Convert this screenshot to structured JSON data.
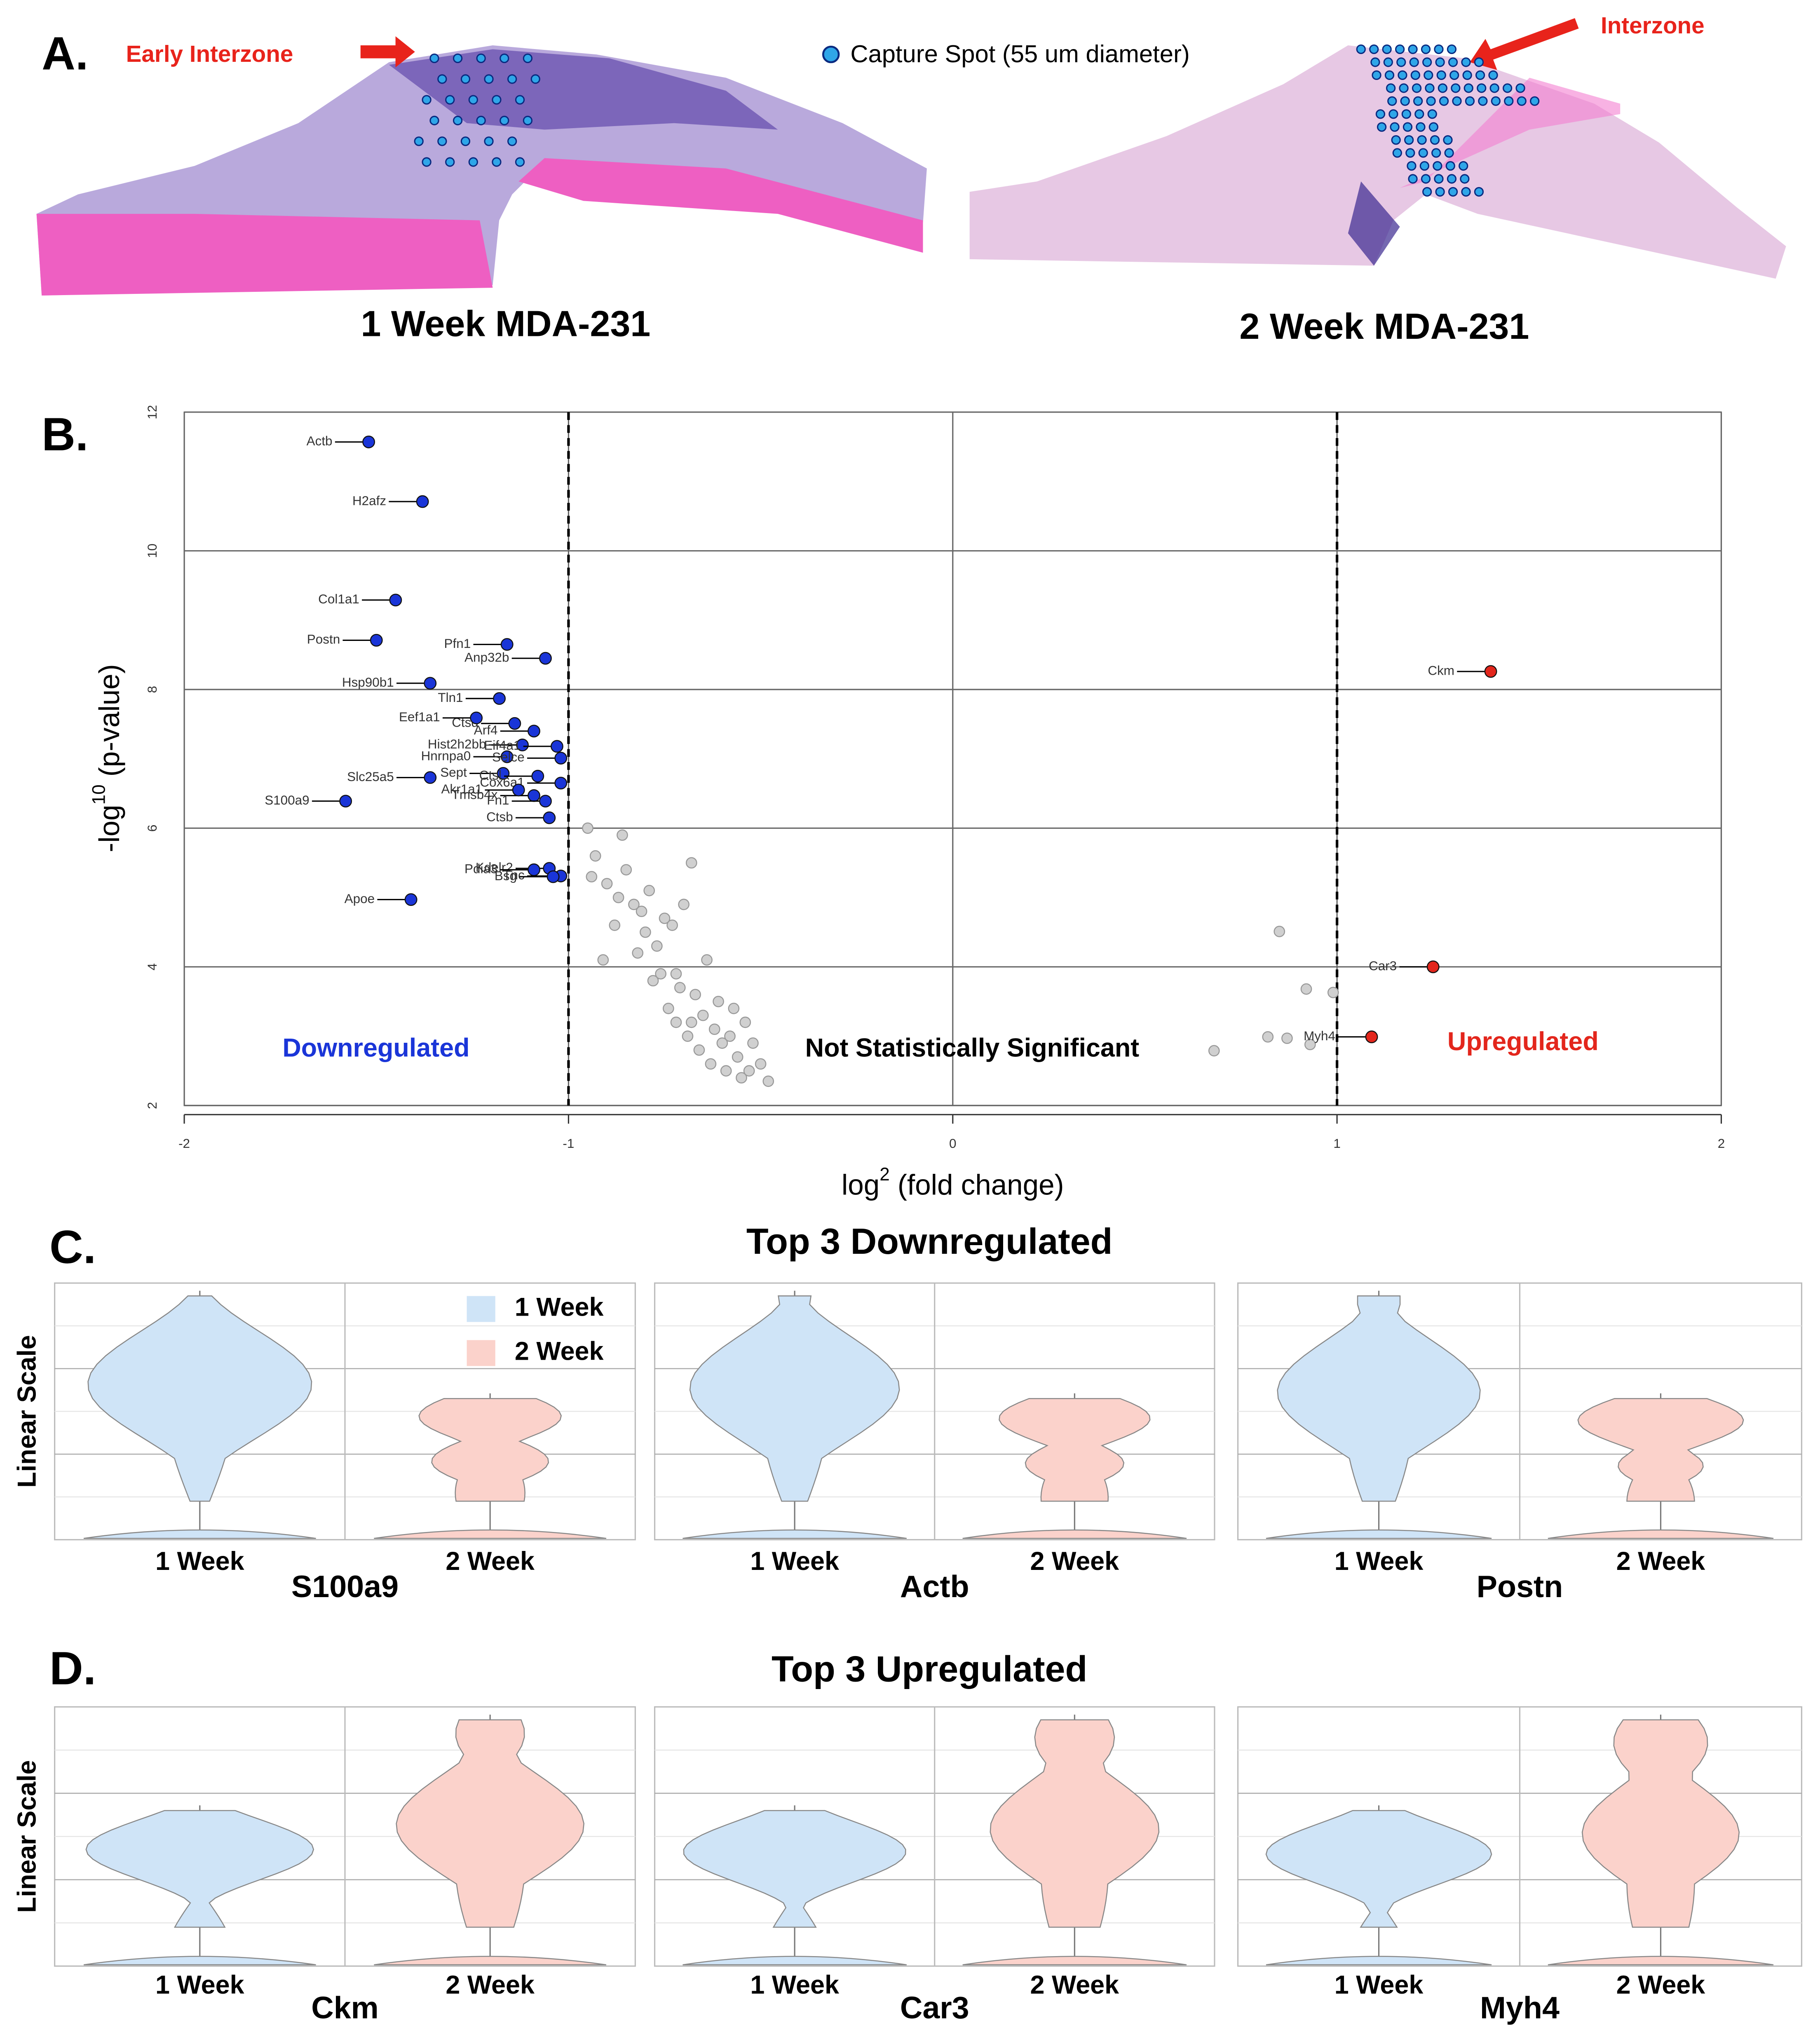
{
  "panel_a": {
    "label": "A.",
    "left_annotation": "Early Interzone",
    "legend": "Capture Spot (55 um diameter)",
    "right_annotation": "Interzone",
    "captions": [
      "1 Week MDA-231",
      "2 Week MDA-231"
    ]
  },
  "panel_b_label": "B.",
  "chart_data": {
    "type": "scatter",
    "xlabel": [
      "log",
      "2",
      " (fold change)"
    ],
    "ylabel": [
      "-log",
      "10",
      " (p-value)"
    ],
    "xlim": [
      -2,
      2
    ],
    "ylim": [
      2,
      12
    ],
    "xticks": [
      -2,
      -1,
      0,
      1,
      2
    ],
    "yticks": [
      2,
      4,
      6,
      8,
      10,
      12
    ],
    "thresholds": [
      -1,
      1
    ],
    "grid": true,
    "series": [
      {
        "name": "Downregulated",
        "color": "#1a35d8",
        "labels": [
          "Actb",
          "H2afz",
          "Col1a1",
          "Postn",
          "Anp32b",
          "Ctsd",
          "Pfn1",
          "Hist2h2bb",
          "Hsp90b1",
          "Tln1",
          "Eef1a1",
          "Arf4",
          "Eif4a1",
          "Hnrnpa0",
          "Selce",
          "Slc25a5",
          "Sept",
          "Cox6a1",
          "S100a9",
          "Ctsl",
          "Tmsb4x",
          "Fn1",
          "Ctsb",
          "Akr1a1",
          "Kdelr2",
          "Pdia3",
          "Tnc",
          "Bsg",
          "Apoe"
        ],
        "x": [
          -1.52,
          -1.38,
          -1.45,
          -1.5,
          -1.06,
          -1.14,
          -1.16,
          -1.12,
          -1.36,
          -1.18,
          -1.24,
          -1.09,
          -1.03,
          -1.16,
          -1.02,
          -1.36,
          -1.17,
          -1.02,
          -1.58,
          -1.08,
          -1.09,
          -1.06,
          -1.05,
          -1.13,
          -1.05,
          -1.09,
          -1.02,
          -1.04,
          -1.41
        ],
        "values": [
          11.57,
          10.71,
          9.29,
          8.71,
          8.45,
          7.51,
          8.65,
          7.2,
          8.09,
          7.87,
          7.59,
          7.4,
          7.18,
          7.03,
          7.01,
          6.73,
          6.79,
          6.65,
          6.39,
          6.75,
          6.47,
          6.39,
          6.15,
          6.55,
          5.42,
          5.4,
          5.31,
          5.3,
          4.97
        ]
      },
      {
        "name": "Not Statistically Significant",
        "color": "#d0d0d0",
        "x": [
          -0.95,
          -0.93,
          -0.9,
          -0.88,
          -0.86,
          -0.85,
          -0.83,
          -0.82,
          -0.8,
          -0.79,
          -0.78,
          -0.77,
          -0.76,
          -0.75,
          -0.74,
          -0.73,
          -0.72,
          -0.71,
          -0.7,
          -0.69,
          -0.68,
          -0.67,
          -0.66,
          -0.65,
          -0.64,
          -0.63,
          -0.62,
          -0.61,
          -0.6,
          -0.59,
          -0.58,
          -0.57,
          -0.56,
          -0.55,
          -0.54,
          -0.53,
          -0.52,
          -0.5,
          -0.48,
          -0.94,
          -0.91,
          -0.87,
          -0.81,
          -0.72,
          -0.68,
          0.68,
          0.82,
          0.85,
          0.87,
          0.92,
          0.93,
          0.99
        ],
        "values": [
          6.0,
          5.6,
          5.2,
          4.6,
          5.9,
          5.4,
          4.9,
          4.2,
          4.5,
          5.1,
          3.8,
          4.3,
          3.9,
          4.7,
          3.4,
          4.6,
          3.2,
          3.7,
          4.9,
          3.0,
          5.5,
          3.6,
          2.8,
          3.3,
          4.1,
          2.6,
          3.1,
          3.5,
          2.9,
          2.5,
          3.0,
          3.4,
          2.7,
          2.4,
          3.2,
          2.5,
          2.9,
          2.6,
          2.35,
          5.3,
          4.1,
          5.0,
          4.8,
          3.9,
          3.2,
          2.79,
          2.99,
          4.51,
          2.97,
          3.68,
          2.88,
          3.63
        ]
      },
      {
        "name": "Upregulated",
        "color": "#e3261c",
        "labels": [
          "Ckm",
          "Car3",
          "Myh4"
        ],
        "x": [
          1.4,
          1.25,
          1.09
        ],
        "values": [
          8.26,
          4.0,
          2.99
        ]
      }
    ]
  },
  "violins": {
    "ylabel": "Linear Scale",
    "groups": [
      "1 Week",
      "2 Week"
    ],
    "colors": [
      "#cfe4f7",
      "#fbd2cb"
    ],
    "rows": [
      {
        "label": "C.",
        "title": "Top 3 Downregulated",
        "genes": [
          "S100a9",
          "Actb",
          "Postn"
        ]
      },
      {
        "label": "D.",
        "title": "Top 3 Upregulated",
        "genes": [
          "Ckm",
          "Car3",
          "Myh4"
        ]
      }
    ]
  }
}
